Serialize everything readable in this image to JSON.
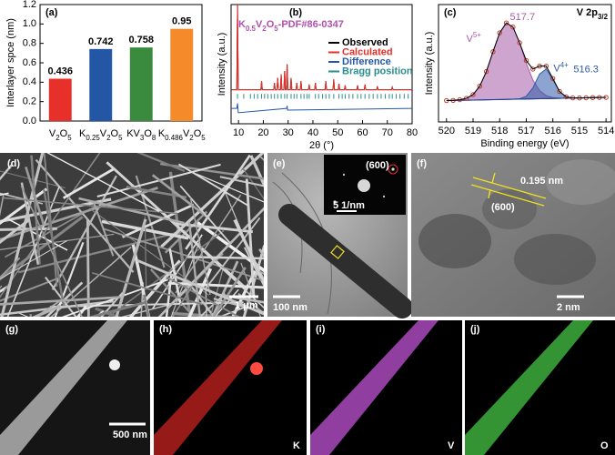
{
  "chart_data": [
    {
      "type": "bar",
      "panel_label": "(a)",
      "ylabel": "Interlayer spce (nm)",
      "categories": [
        "V2O5",
        "K0.25V2O5",
        "KV3O8",
        "K0.486V2O5"
      ],
      "values": [
        0.436,
        0.742,
        0.758,
        0.95
      ],
      "colors": [
        "#e8302a",
        "#2456a6",
        "#3b8b3f",
        "#f58a2a"
      ],
      "ylim": [
        0,
        1.2
      ],
      "yticks": [
        {
          "value": 0,
          "label": "0.0"
        },
        0.2,
        0.4,
        0.6,
        0.8,
        {
          "value": 1,
          "label": "1.0"
        },
        1.2
      ]
    },
    {
      "type": "line",
      "panel_label": "(b)",
      "xlabel": "2θ (°)",
      "ylabel": "Intensity (a.u.)",
      "annotation": "K0.5V2O5-PDF#86-0347",
      "annotation_color": "#b04fae",
      "legend": "upper right",
      "x": [
        7,
        9.3,
        9.6,
        9.9,
        19,
        19.3,
        19.6,
        24.2,
        24.5,
        24.8,
        25.5,
        25.8,
        26.1,
        26.9,
        27.2,
        27.5,
        28.3,
        28.6,
        28.9,
        29.3,
        29.6,
        29.9,
        30.9,
        31.2,
        31.5,
        33.2,
        33.5,
        33.8,
        34.9,
        35.2,
        35.5,
        38.2,
        38.5,
        38.8,
        40.7,
        41,
        41.3,
        44.9,
        45.2,
        45.5,
        48.1,
        48.4,
        48.7,
        50.2,
        50.5,
        50.8,
        52.7,
        53,
        53.3,
        57.7,
        58,
        58.3,
        60.7,
        61,
        61.3,
        65.7,
        66,
        66.3,
        71.7,
        72,
        72.3,
        80
      ],
      "series": [
        {
          "name": "Observed",
          "color": "#000000",
          "values": [
            0,
            0,
            100,
            0,
            0,
            10,
            0,
            0,
            8,
            0,
            0,
            14,
            0,
            0,
            18,
            0,
            0,
            22,
            0,
            0,
            30,
            0,
            0,
            14,
            0,
            0,
            8,
            0,
            0,
            10,
            0,
            0,
            6,
            0,
            0,
            8,
            0,
            0,
            10,
            0,
            0,
            12,
            0,
            0,
            7,
            0,
            0,
            5,
            0,
            0,
            5,
            0,
            0,
            6,
            0,
            0,
            4,
            0,
            0,
            3,
            0,
            0
          ]
        },
        {
          "name": "Calculated",
          "color": "#e8302a",
          "values": [
            0,
            0,
            100,
            0,
            0,
            10,
            0,
            0,
            8,
            0,
            0,
            14,
            0,
            0,
            18,
            0,
            0,
            22,
            0,
            0,
            30,
            0,
            0,
            14,
            0,
            0,
            8,
            0,
            0,
            10,
            0,
            0,
            6,
            0,
            0,
            8,
            0,
            0,
            10,
            0,
            0,
            12,
            0,
            0,
            7,
            0,
            0,
            5,
            0,
            0,
            5,
            0,
            0,
            6,
            0,
            0,
            4,
            0,
            0,
            3,
            0,
            0
          ]
        },
        {
          "name": "Difference",
          "color": "#2456a6",
          "x": [
            7,
            9.3,
            9.6,
            9.9,
            29.4,
            29.6,
            29.8,
            80
          ],
          "values": [
            -22,
            -22,
            -16,
            -27,
            -22,
            -19,
            -24,
            -22
          ]
        },
        {
          "name": "Bragg position",
          "color": "#2a8c8c",
          "x": [
            9.6,
            12.1,
            14.8,
            16.3,
            17.7,
            19.3,
            20.5,
            21.8,
            23.2,
            24.5,
            25.8,
            27.2,
            28.6,
            29.6,
            31.2,
            32.4,
            33.5,
            35.2,
            36.4,
            37.6,
            38.5,
            41,
            42.3,
            43.9,
            45.2,
            46.6,
            48.4,
            50.5,
            51.8,
            53,
            54.6,
            56.1,
            58,
            59.4,
            61,
            62.7,
            64.3,
            66,
            67.5,
            69.2,
            70.8,
            72,
            73.6,
            75.1,
            76.8,
            78.4
          ]
        }
      ],
      "xlim": [
        7,
        80
      ],
      "xticks": [
        10,
        20,
        30,
        40,
        50,
        60,
        70,
        80
      ],
      "ylim": [
        -40,
        100
      ]
    },
    {
      "type": "line",
      "panel_label": "(c)",
      "title": "V 2p3/2",
      "xlabel": "Binding energy (eV)",
      "ylabel": "Intensity (a.u.)",
      "x": [
        520,
        519.75,
        519.5,
        519.25,
        519,
        518.75,
        518.5,
        518.25,
        518,
        517.75,
        517.5,
        517.25,
        517,
        516.75,
        516.5,
        516.25,
        516,
        515.75,
        515.5,
        515.25,
        515,
        514.75,
        514.5,
        514.25,
        514
      ],
      "series": [
        {
          "name": "V5+",
          "peak": 517.7,
          "color": "#a65ba8",
          "fill": true,
          "values": [
            20,
            20.2,
            20.8,
            22.1,
            25.6,
            33.5,
            47.3,
            65.8,
            83.5,
            92.8,
            88.9,
            73.9,
            55,
            39.2,
            29.4,
            24.6,
            22.8,
            22.3,
            22.3,
            22.4,
            22.5,
            22.6,
            22.8,
            22.9,
            23
          ]
        },
        {
          "name": "V4+",
          "peak": 516.3,
          "color": "#2d5aa8",
          "fill": true,
          "values": [
            20,
            20.1,
            20.3,
            20.4,
            20.5,
            20.6,
            20.8,
            20.9,
            21,
            21.1,
            21.3,
            21.7,
            24,
            31.9,
            44.8,
            49.6,
            39.9,
            28.4,
            23.5,
            22.5,
            22.5,
            22.6,
            22.8,
            22.9,
            23
          ]
        },
        {
          "color": "#1f3f8f",
          "values": [
            20,
            20.1,
            20.3,
            20.4,
            20.5,
            20.6,
            20.8,
            20.9,
            21,
            21.1,
            21.3,
            21.4,
            21.5,
            21.6,
            21.8,
            21.9,
            22,
            22.1,
            22.3,
            22.4,
            22.5,
            22.6,
            22.8,
            22.9,
            23
          ]
        },
        {
          "color": "#c0392b",
          "marker": "circle",
          "values": [
            20,
            20.2,
            20.8,
            22.1,
            25.6,
            33.5,
            47.3,
            65.8,
            83.5,
            92.8,
            88.9,
            74.2,
            57.5,
            49.5,
            52.4,
            52.3,
            40.7,
            28.6,
            23.5,
            22.5,
            22.5,
            22.6,
            22.8,
            22.9,
            23
          ]
        },
        {
          "color": "#000000",
          "values": [
            20,
            20.2,
            20.8,
            22.1,
            25.6,
            33.5,
            47.3,
            65.8,
            83.5,
            92.8,
            88.9,
            74.2,
            57.5,
            49.5,
            52.4,
            52.3,
            40.7,
            28.6,
            23.5,
            22.5,
            22.5,
            22.6,
            22.8,
            22.9,
            23
          ]
        }
      ],
      "xlim": [
        520.3,
        513.8
      ],
      "xticks": [
        520,
        519,
        518,
        517,
        516,
        515,
        514
      ],
      "ylim": [
        0,
        110
      ]
    }
  ],
  "images": [
    {
      "label": "(d)",
      "texts": [
        "1 μm"
      ]
    },
    {
      "label": "(e)",
      "texts": [
        "(600)",
        "5 1/nm",
        "100 nm"
      ]
    },
    {
      "label": "(f)",
      "texts": [
        "0.195 nm",
        "(600)",
        "2 nm"
      ]
    },
    {
      "label": "(g)",
      "texts": [
        "500 nm"
      ]
    },
    {
      "label": "(h)",
      "texts": [
        "K"
      ]
    },
    {
      "label": "(i)",
      "texts": [
        "V"
      ]
    },
    {
      "label": "(j)",
      "texts": [
        "O"
      ]
    }
  ]
}
